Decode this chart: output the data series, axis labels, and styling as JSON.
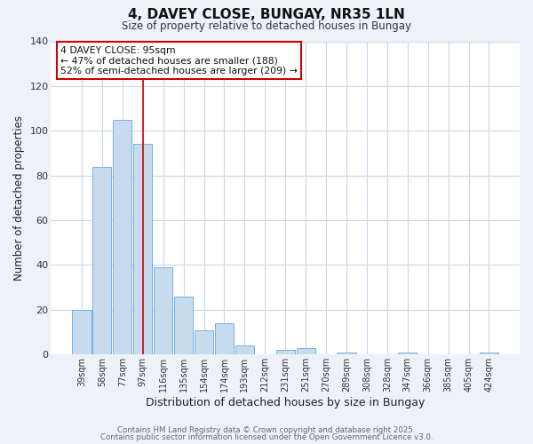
{
  "title": "4, DAVEY CLOSE, BUNGAY, NR35 1LN",
  "subtitle": "Size of property relative to detached houses in Bungay",
  "xlabel": "Distribution of detached houses by size in Bungay",
  "ylabel": "Number of detached properties",
  "bar_labels": [
    "39sqm",
    "58sqm",
    "77sqm",
    "97sqm",
    "116sqm",
    "135sqm",
    "154sqm",
    "174sqm",
    "193sqm",
    "212sqm",
    "231sqm",
    "251sqm",
    "270sqm",
    "289sqm",
    "308sqm",
    "328sqm",
    "347sqm",
    "366sqm",
    "385sqm",
    "405sqm",
    "424sqm"
  ],
  "bar_values": [
    20,
    84,
    105,
    94,
    39,
    26,
    11,
    14,
    4,
    0,
    2,
    3,
    0,
    1,
    0,
    0,
    1,
    0,
    0,
    0,
    1
  ],
  "bar_color": "#c6dcee",
  "bar_edge_color": "#7aafe0",
  "vline_x_idx": 3,
  "vline_color": "#cc0000",
  "ylim": [
    0,
    140
  ],
  "yticks": [
    0,
    20,
    40,
    60,
    80,
    100,
    120,
    140
  ],
  "annotation_title": "4 DAVEY CLOSE: 95sqm",
  "annotation_line1": "← 47% of detached houses are smaller (188)",
  "annotation_line2": "52% of semi-detached houses are larger (209) →",
  "annotation_box_facecolor": "#ffffff",
  "annotation_border_color": "#cc0000",
  "footer1": "Contains HM Land Registry data © Crown copyright and database right 2025.",
  "footer2": "Contains public sector information licensed under the Open Government Licence v3.0.",
  "background_color": "#eef2f8",
  "plot_background": "#ffffff",
  "grid_color": "#c8d8ea"
}
